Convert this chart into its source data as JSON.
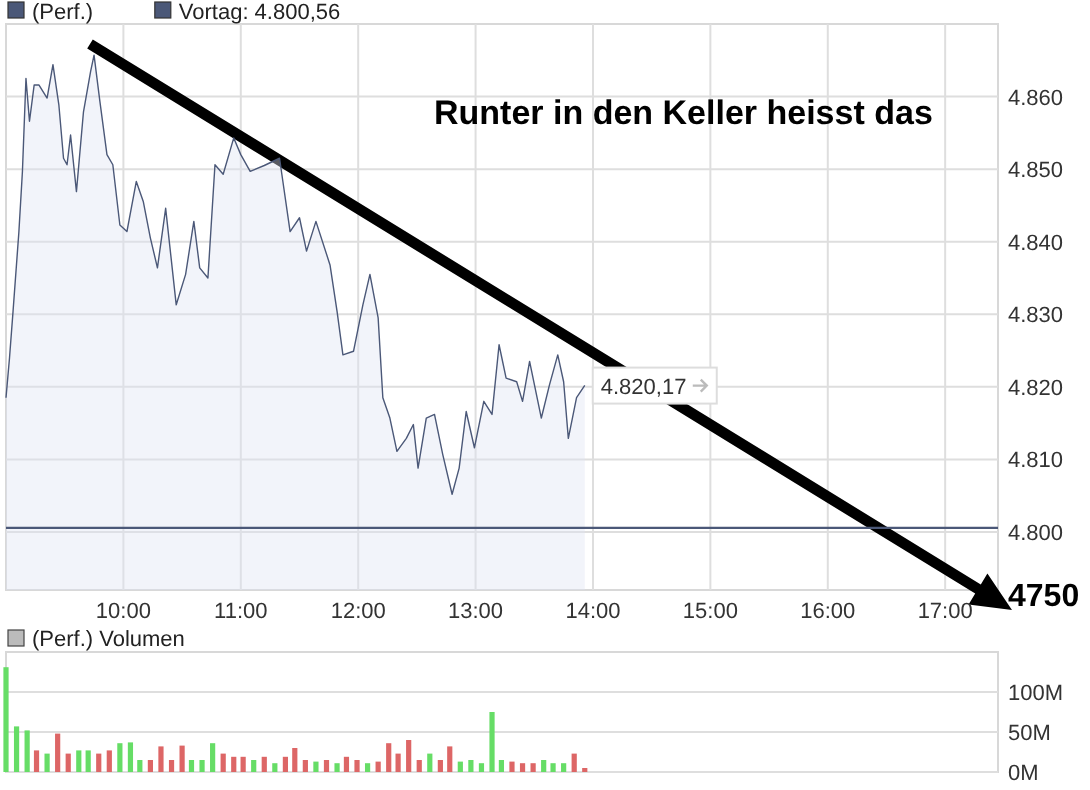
{
  "chart_data": [
    {
      "type": "area",
      "legend": "top left",
      "grid": true,
      "tick_labels": "xy",
      "xlim": [
        9,
        17.45
      ],
      "ylim": [
        4792,
        4870
      ],
      "xticks": [
        {
          "value": 10,
          "label": "10:00"
        },
        {
          "value": 11,
          "label": "11:00"
        },
        {
          "value": 12,
          "label": "12:00"
        },
        {
          "value": 13,
          "label": "13:00"
        },
        {
          "value": 14,
          "label": "14:00"
        },
        {
          "value": 15,
          "label": "15:00"
        },
        {
          "value": 16,
          "label": "16:00"
        },
        {
          "value": 17,
          "label": "17:00"
        }
      ],
      "yticks": [
        {
          "value": 4800,
          "label": "4.800"
        },
        {
          "value": 4810,
          "label": "4.810"
        },
        {
          "value": 4820,
          "label": "4.820"
        },
        {
          "value": 4830,
          "label": "4.830"
        },
        {
          "value": 4840,
          "label": "4.840"
        },
        {
          "value": 4850,
          "label": "4.850"
        },
        {
          "value": 4860,
          "label": "4.860"
        }
      ],
      "series": [
        {
          "name": "(Perf.)",
          "color": "#4b5878",
          "x": [
            9.0,
            9.03,
            9.06,
            9.11,
            9.14,
            9.17,
            9.2,
            9.24,
            9.28,
            9.35,
            9.4,
            9.45,
            9.49,
            9.52,
            9.55,
            9.6,
            9.66,
            9.72,
            9.75,
            9.8,
            9.86,
            9.91,
            9.97,
            10.03,
            10.11,
            10.17,
            10.23,
            10.29,
            10.36,
            10.45,
            10.53,
            10.6,
            10.65,
            10.72,
            10.78,
            10.85,
            10.94,
            11.0,
            11.08,
            11.2,
            11.33,
            11.42,
            11.5,
            11.56,
            11.64,
            11.76,
            11.82,
            11.87,
            11.96,
            12.04,
            12.1,
            12.17,
            12.21,
            12.27,
            12.33,
            12.41,
            12.47,
            12.51,
            12.58,
            12.65,
            12.72,
            12.8,
            12.86,
            12.92,
            12.99,
            13.07,
            13.14,
            13.2,
            13.26,
            13.35,
            13.4,
            13.46,
            13.56,
            13.63,
            13.7,
            13.75,
            13.79,
            13.86,
            13.93
          ],
          "values": [
            4818.5,
            4824,
            4830.4,
            4841.4,
            4849.7,
            4862.5,
            4856.6,
            4861.6,
            4861.6,
            4859.8,
            4864.4,
            4858.9,
            4851.5,
            4850.6,
            4854.7,
            4846.9,
            4857.9,
            4863.4,
            4865.7,
            4859.3,
            4852,
            4850.6,
            4842.3,
            4841.4,
            4848.3,
            4845.5,
            4840.5,
            4836.4,
            4844.6,
            4831.3,
            4835.5,
            4842.8,
            4836.4,
            4835,
            4850.6,
            4849.3,
            4854.3,
            4852,
            4849.7,
            4850.5,
            4851.5,
            4841.4,
            4843.3,
            4838.7,
            4842.8,
            4836.8,
            4830.4,
            4824.4,
            4824.9,
            4831.3,
            4835.5,
            4829.5,
            4818.5,
            4815.7,
            4811.1,
            4812.9,
            4814.8,
            4808.8,
            4815.7,
            4816.2,
            4810.7,
            4805.2,
            4808.8,
            4816.6,
            4811.6,
            4818,
            4816.2,
            4825.8,
            4821.2,
            4820.7,
            4818,
            4823.5,
            4815.7,
            4820.3,
            4824.4,
            4820.7,
            4812.9,
            4818.5,
            4820.2
          ]
        }
      ],
      "ref_lines": [
        {
          "axis": "y",
          "value": 4800.56,
          "label": "Vortag: 4.800,56",
          "color": "#4b5878"
        }
      ],
      "annotations": [
        "Runter in den Keller heisst das",
        "4750",
        {
          "text": "4.820,17",
          "x": 13.93,
          "y": 4820.17
        }
      ]
    },
    {
      "type": "bar",
      "title": "(Perf.) Volumen",
      "grid": true,
      "tick_labels": "y",
      "xlim": [
        9,
        17.45
      ],
      "ylim": [
        0,
        150
      ],
      "yticks": [
        {
          "value": 0,
          "label": "0M"
        },
        {
          "value": 50,
          "label": "50M"
        },
        {
          "value": 100,
          "label": "100M"
        }
      ],
      "x": [
        9.0,
        9.09,
        9.18,
        9.26,
        9.35,
        9.44,
        9.53,
        9.62,
        9.7,
        9.79,
        9.88,
        9.97,
        10.06,
        10.14,
        10.23,
        10.32,
        10.41,
        10.5,
        10.58,
        10.67,
        10.76,
        10.85,
        10.94,
        11.02,
        11.11,
        11.2,
        11.29,
        11.38,
        11.46,
        11.55,
        11.64,
        11.73,
        11.82,
        11.9,
        11.99,
        12.08,
        12.17,
        12.26,
        12.34,
        12.43,
        12.52,
        12.61,
        12.7,
        12.78,
        12.87,
        12.96,
        13.05,
        13.14,
        13.22,
        13.31,
        13.4,
        13.49,
        13.58,
        13.66,
        13.75,
        13.84,
        13.93
      ],
      "values": [
        131,
        57,
        52,
        27,
        23,
        48,
        23,
        27,
        27,
        23,
        27,
        36,
        37,
        15,
        15,
        32,
        15,
        33,
        15,
        15,
        36,
        23,
        19,
        19,
        15,
        19,
        11,
        19,
        30,
        15,
        13,
        15,
        11,
        19,
        15,
        11,
        13,
        36,
        23,
        40,
        15,
        23,
        15,
        32,
        13,
        15,
        11,
        75,
        15,
        13,
        11,
        11,
        15,
        11,
        11,
        23,
        5
      ],
      "colors": [
        "#66dd66",
        "#66dd66",
        "#66dd66",
        "#dd6666",
        "#66dd66",
        "#dd6666",
        "#dd6666",
        "#66dd66",
        "#66dd66",
        "#dd6666",
        "#dd6666",
        "#66dd66",
        "#66dd66",
        "#66dd66",
        "#dd6666",
        "#dd6666",
        "#dd6666",
        "#dd6666",
        "#66dd66",
        "#66dd66",
        "#66dd66",
        "#dd6666",
        "#dd6666",
        "#dd6666",
        "#66dd66",
        "#dd6666",
        "#66dd66",
        "#dd6666",
        "#dd6666",
        "#dd6666",
        "#66dd66",
        "#dd6666",
        "#66dd66",
        "#dd6666",
        "#dd6666",
        "#66dd66",
        "#dd6666",
        "#dd6666",
        "#dd6666",
        "#dd6666",
        "#dd6666",
        "#66dd66",
        "#dd6666",
        "#dd6666",
        "#66dd66",
        "#66dd66",
        "#66dd66",
        "#66dd66",
        "#66dd66",
        "#dd6666",
        "#dd6666",
        "#dd6666",
        "#66dd66",
        "#66dd66",
        "#66dd66",
        "#dd6666",
        "#dd6666"
      ]
    }
  ]
}
